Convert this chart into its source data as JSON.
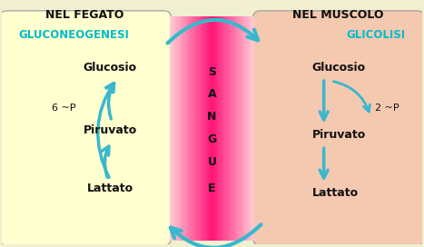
{
  "title_left": "NEL FEGATO",
  "title_right": "NEL MUSCOLO",
  "label_left_process": "GLUCONEOGENESI",
  "label_right_process": "GLICOLISI",
  "sangue_letters": [
    "S",
    "A",
    "N",
    "G",
    "U",
    "E"
  ],
  "left_metabolites": [
    "Glucosio",
    "Piruvato",
    "Lattato"
  ],
  "right_metabolites": [
    "Glucosio",
    "Piruvato",
    "Lattato"
  ],
  "left_side_label": "6 ~P",
  "right_side_label": "2 ~P",
  "left_box_color": "#FFFFD0",
  "right_box_color": "#F5C8B0",
  "arrow_color": "#38B8CC",
  "title_color": "#111111",
  "process_color": "#00BBCC",
  "metabolite_color": "#111111",
  "fig_bg": "#F0F0D0",
  "sangue_text_color": "#111111"
}
